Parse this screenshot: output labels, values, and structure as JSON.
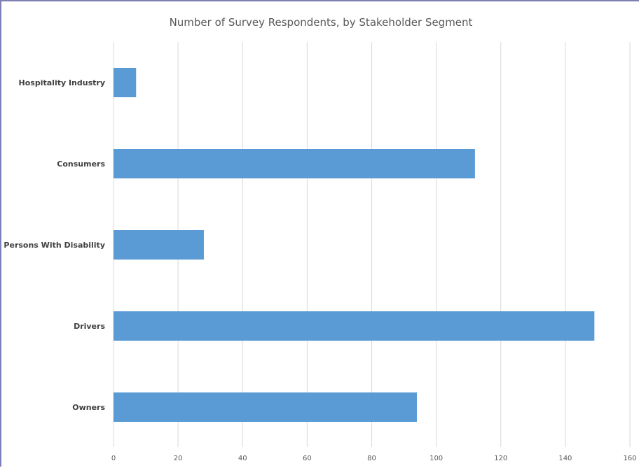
{
  "chart_data": {
    "type": "bar",
    "orientation": "horizontal",
    "title": "Number of Survey Respondents, by Stakeholder Segment",
    "xlabel": "",
    "ylabel": "",
    "categories": [
      "Hospitality Industry",
      "Consumers",
      "Persons With Disability",
      "Drivers",
      "Owners"
    ],
    "values": [
      7,
      112,
      28,
      149,
      94
    ],
    "xlim": [
      0,
      160
    ],
    "x_ticks": [
      "0",
      "20",
      "40",
      "60",
      "80",
      "100",
      "120",
      "140",
      "160"
    ],
    "grid": true,
    "legend": "none",
    "bar_color": "#5b9bd5",
    "grid_color": "#d9d9d9",
    "border_color": "#7f7fb5"
  }
}
